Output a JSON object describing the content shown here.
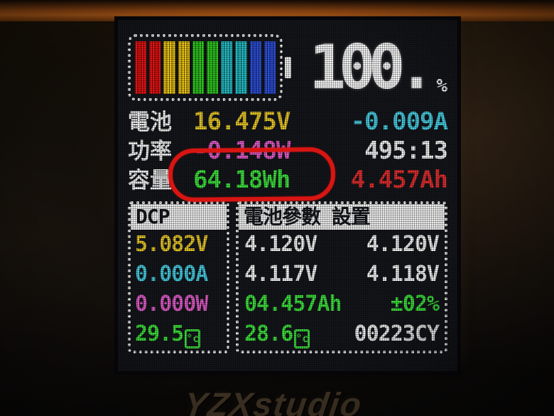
{
  "device": {
    "brand_logo": "YZXstudio"
  },
  "colors": {
    "yellow": "#e6c628",
    "cyan": "#46cce0",
    "magenta": "#e05cc8",
    "green": "#3ce03c",
    "red": "#e02e2e",
    "white": "#f2f2f2",
    "annotation_red": "#d81512",
    "screen_bg": "#15161b",
    "header_bg": "#ededed"
  },
  "screen": {
    "battery_gauge": {
      "percent": "100.",
      "percent_unit": "%",
      "segments": [
        "#ea1414",
        "#ea1414",
        "#f0c814",
        "#f0c814",
        "#30cc20",
        "#30cc20",
        "#26c2ca",
        "#26c2ca",
        "#2e52e0",
        "#2e52e0"
      ]
    },
    "summary": {
      "row1": {
        "label": "電池",
        "v1": "16.475V",
        "v2": "-0.009A"
      },
      "row2": {
        "label": "功率",
        "v1": "-0.148W",
        "v2": "495:13"
      },
      "row3": {
        "label": "容量",
        "v1": "64.18Wh",
        "v2": "4.457Ah"
      }
    },
    "left_panel": {
      "header": "DCP",
      "voltage": "5.082V",
      "current": "0.000A",
      "power": "0.000W",
      "temperature": "29.5",
      "celsius_icon": "°c"
    },
    "right_panel": {
      "header": "電池參數 設置",
      "volt_r1a": "4.120V",
      "volt_r1b": "4.120V",
      "volt_r2a": "4.117V",
      "volt_r2b": "4.118V",
      "capacity": "04.457Ah",
      "accuracy": "±02%",
      "temperature": "28.6",
      "celsius_icon": "°c",
      "cycle_count": "00223CY"
    }
  }
}
